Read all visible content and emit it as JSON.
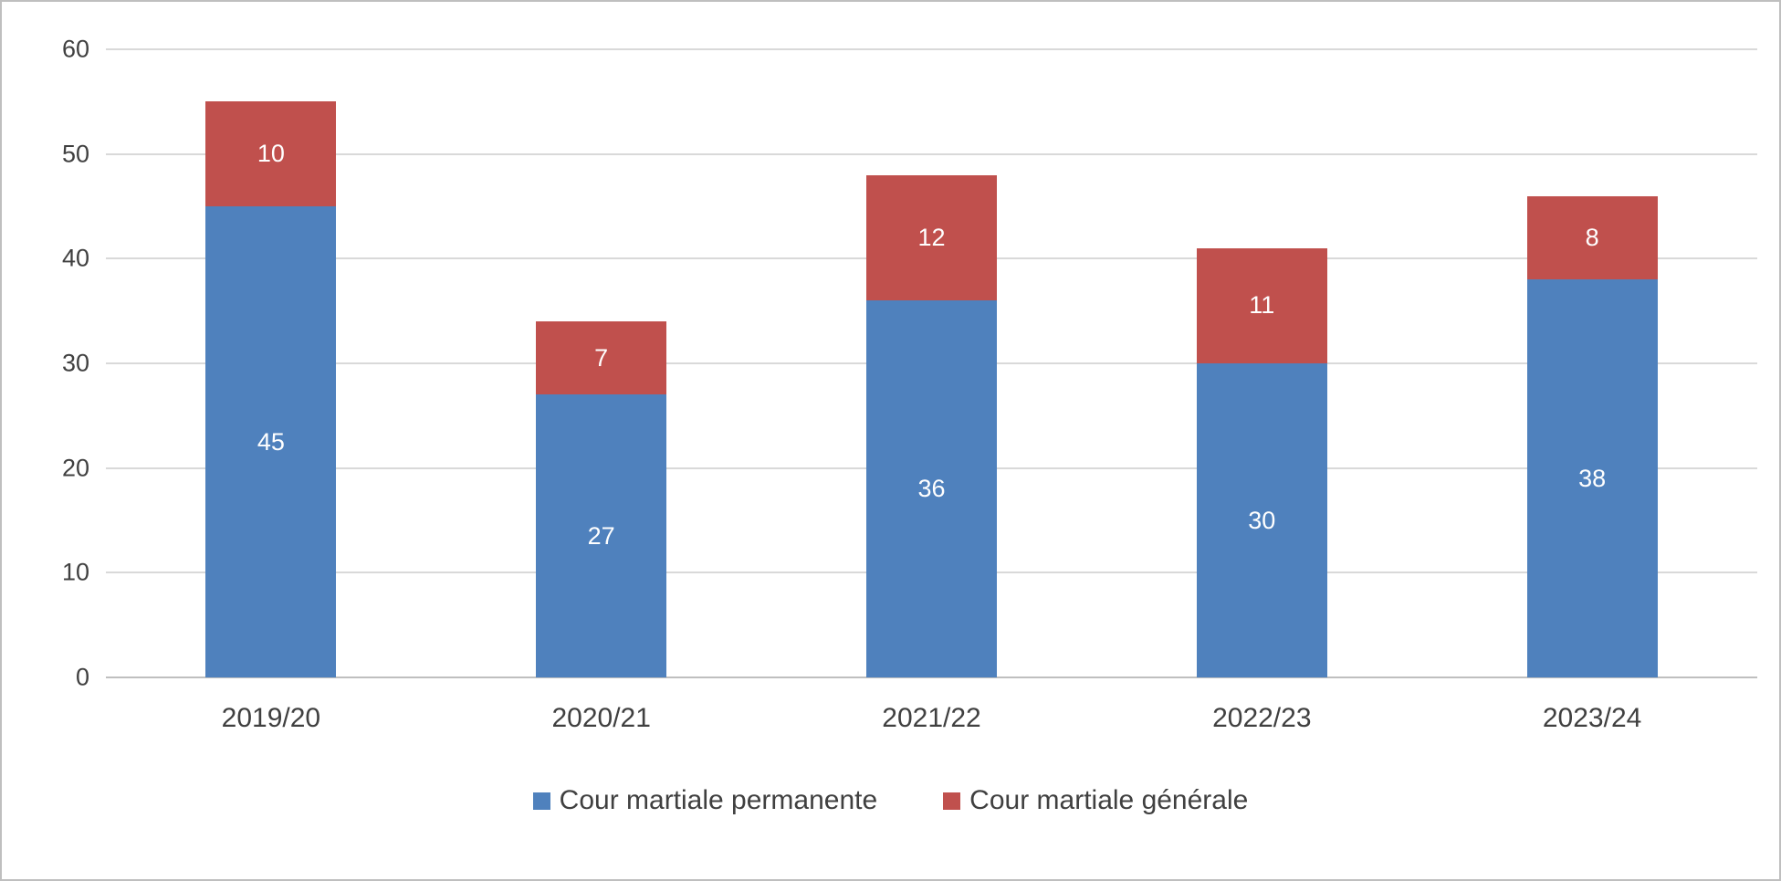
{
  "chart_data": {
    "type": "bar",
    "stacked": true,
    "title": "",
    "xlabel": "",
    "ylabel": "",
    "categories": [
      "2019/20",
      "2020/21",
      "2021/22",
      "2022/23",
      "2023/24"
    ],
    "series": [
      {
        "name": "Cour martiale permanente",
        "color": "#4F81BD",
        "values": [
          45,
          27,
          36,
          30,
          38
        ]
      },
      {
        "name": "Cour martiale générale",
        "color": "#C0504D",
        "values": [
          10,
          7,
          12,
          11,
          8
        ]
      }
    ],
    "totals": [
      55,
      34,
      48,
      41,
      46
    ],
    "ylim": [
      0,
      60
    ],
    "yticks": [
      0,
      10,
      20,
      30,
      40,
      50,
      60
    ],
    "grid": true,
    "legend_position": "bottom",
    "data_labels": "inside-center"
  },
  "colors": {
    "grid": "#D9D9D9",
    "axis_line": "#BFBFBF",
    "tick_label": "#404040",
    "data_label": "#FFFFFF",
    "border": "#BFBFBF",
    "background": "#FFFFFF"
  }
}
